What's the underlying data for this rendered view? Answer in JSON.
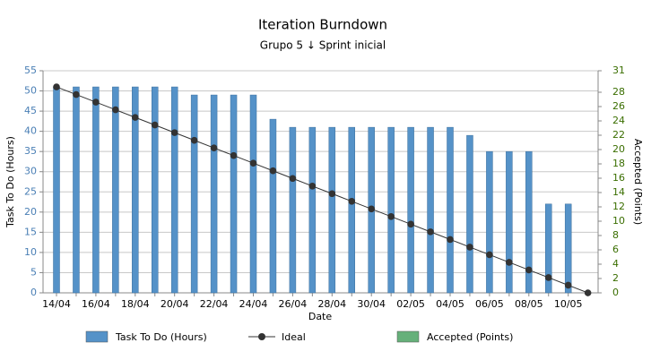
{
  "chart_data": {
    "type": "bar",
    "title": "Iteration Burndown",
    "subtitle": "Grupo 5 ↓ Sprint inicial",
    "x_label": "Date",
    "y_label": "Task To Do (Hours)",
    "y2_label": "Accepted (Points)",
    "categories": [
      "14/04",
      null,
      "16/04",
      null,
      "18/04",
      null,
      "20/04",
      null,
      "22/04",
      null,
      "24/04",
      null,
      "26/04",
      null,
      "28/04",
      null,
      "30/04",
      null,
      "02/05",
      null,
      "04/05",
      null,
      "06/05",
      null,
      "08/05",
      null,
      "10/05",
      null
    ],
    "series": [
      {
        "name": "Task To Do (Hours)",
        "type": "bar",
        "color": "#5592c8",
        "values": [
          51,
          51,
          51,
          51,
          51,
          51,
          51,
          49,
          49,
          49,
          49,
          43,
          41,
          41,
          41,
          41,
          41,
          41,
          41,
          41,
          41,
          39,
          35,
          35,
          35,
          22,
          22,
          null
        ]
      },
      {
        "name": "Ideal",
        "type": "line",
        "color": "#333333",
        "values": [
          51,
          49.11,
          47.22,
          45.33,
          43.44,
          41.56,
          39.67,
          37.78,
          35.89,
          34,
          32.11,
          30.22,
          28.33,
          26.44,
          24.56,
          22.67,
          20.78,
          18.89,
          17,
          15.11,
          13.22,
          11.33,
          9.44,
          7.56,
          5.67,
          3.78,
          1.89,
          0
        ]
      },
      {
        "name": "Accepted (Points)",
        "type": "bar",
        "axis": "y2",
        "color": "#66b07a",
        "values": [
          null,
          null,
          null,
          null,
          null,
          null,
          null,
          null,
          null,
          null,
          null,
          null,
          null,
          null,
          null,
          null,
          null,
          null,
          null,
          null,
          null,
          null,
          null,
          null,
          null,
          null,
          null,
          null
        ]
      }
    ],
    "ylim": [
      0,
      55
    ],
    "yticks": [
      0,
      5,
      10,
      15,
      20,
      25,
      30,
      35,
      40,
      45,
      50,
      55
    ],
    "y2lim": [
      0,
      31
    ],
    "y2ticks": [
      0,
      2,
      4,
      6,
      8,
      10,
      12,
      14,
      16,
      18,
      20,
      22,
      24,
      26,
      28,
      31
    ],
    "grid": true
  }
}
